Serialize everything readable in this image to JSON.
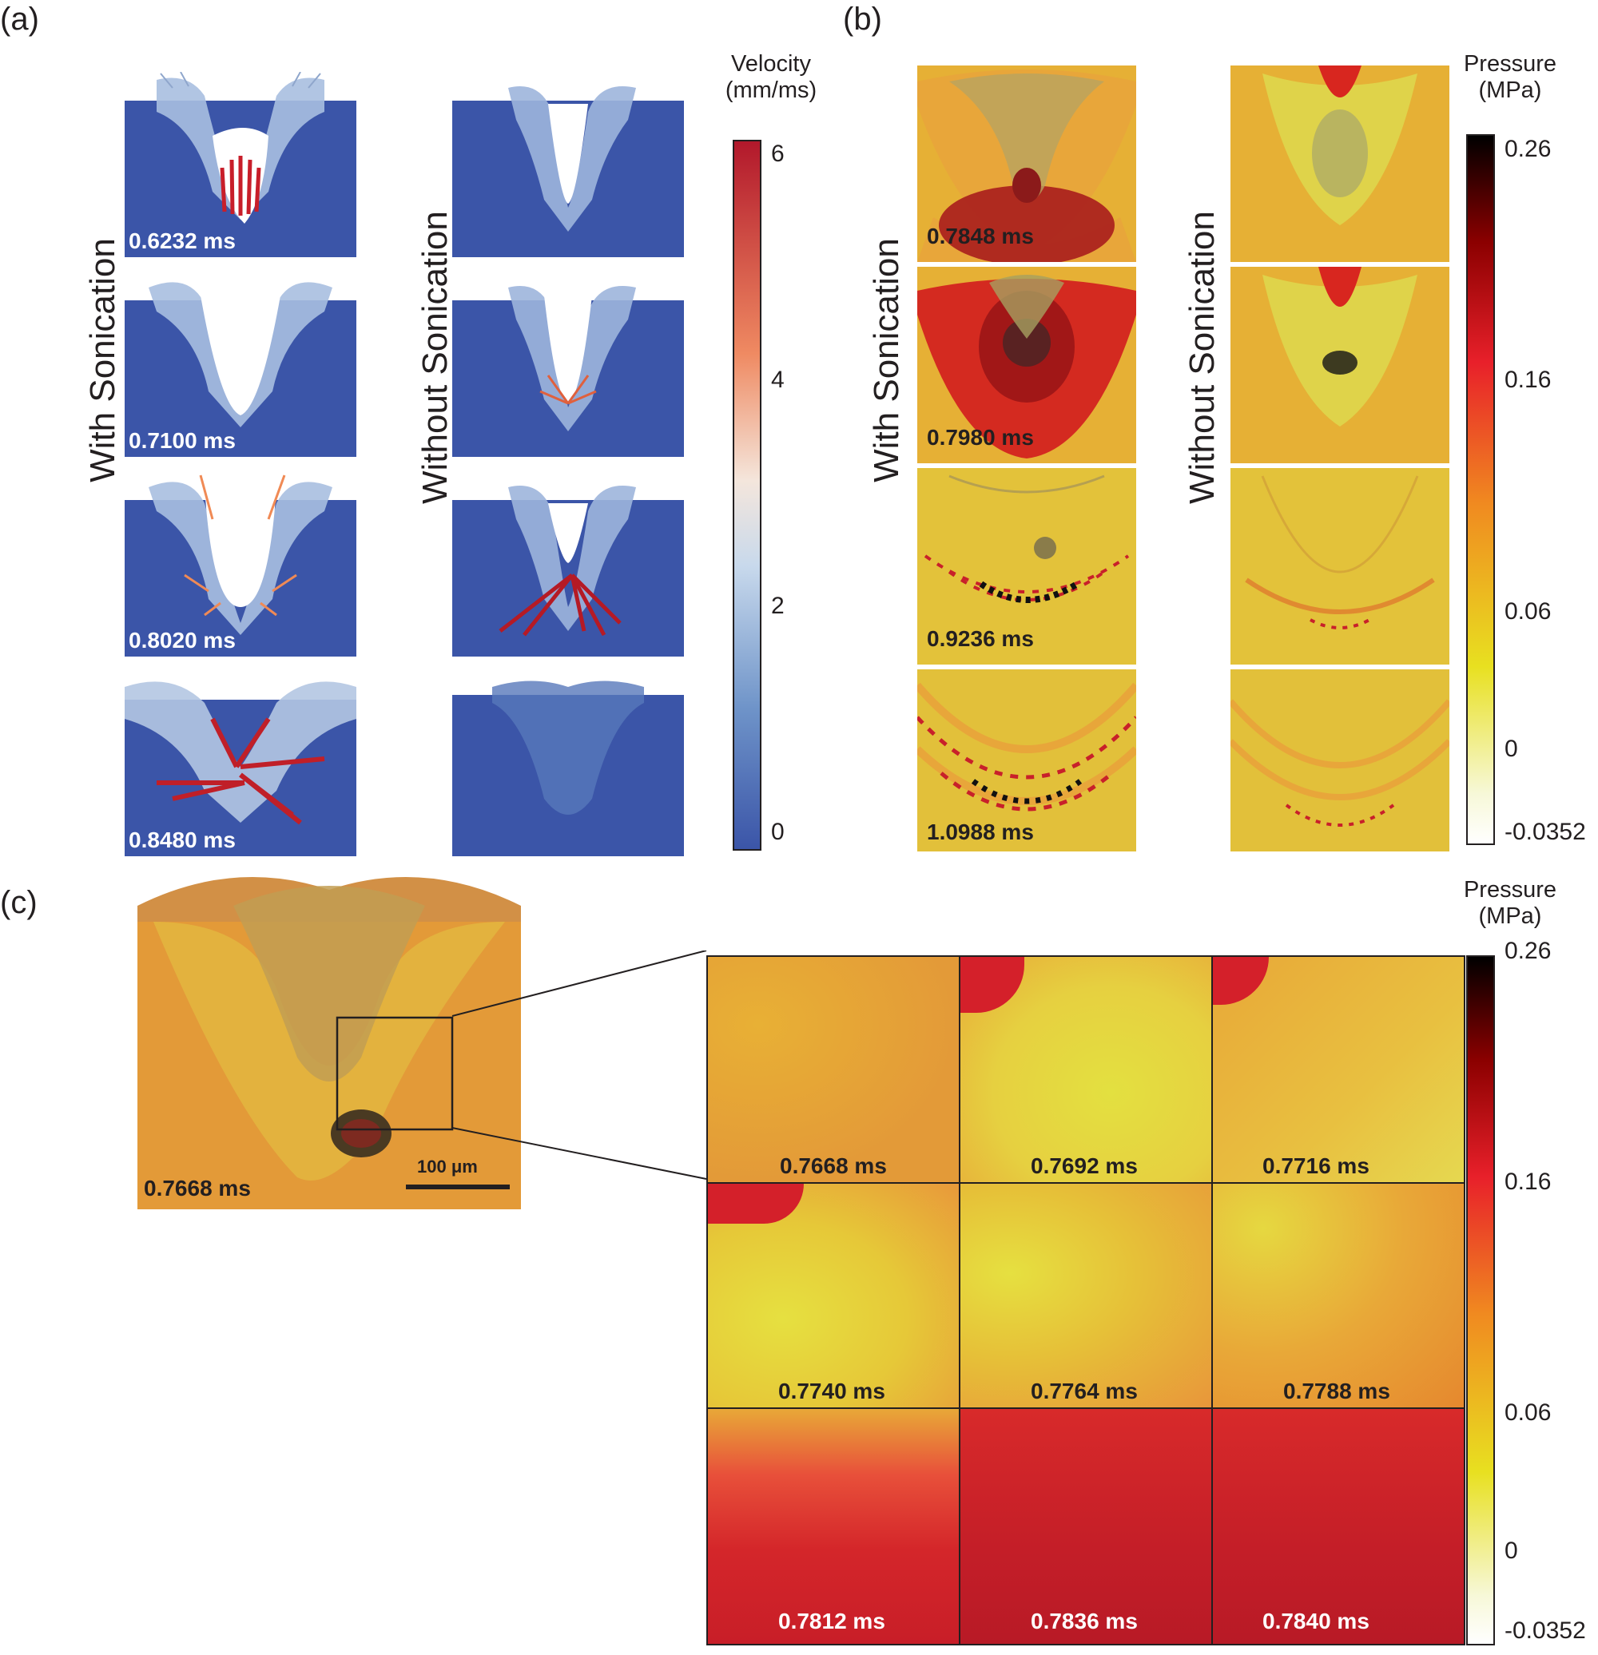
{
  "panels": {
    "a": {
      "letter": "(a)",
      "left_label": "With Sonication",
      "right_label": "Without Sonication",
      "with_times": [
        "0.6232 ms",
        "0.7100 ms",
        "0.8020 ms",
        "0.8480 ms"
      ],
      "colorbar": {
        "title_line1": "Velocity",
        "title_line2": "(mm/ms)",
        "ticks": [
          "6",
          "4",
          "2",
          "0"
        ],
        "colors": [
          "#b2182b",
          "#ef8a62",
          "#fddbc7",
          "#d1e5f0",
          "#67a9cf",
          "#3b5bab"
        ]
      }
    },
    "b": {
      "letter": "(b)",
      "left_label": "With Sonication",
      "right_label": "Without Sonication",
      "with_times": [
        "0.7848 ms",
        "0.7980 ms",
        "0.9236 ms",
        "1.0988 ms"
      ],
      "colorbar": {
        "title_line1": "Pressure",
        "title_line2": "(MPa)",
        "ticks": [
          "0.26",
          "0.16",
          "0.06",
          "0",
          "-0.0352"
        ],
        "colors": [
          "#000000",
          "#8b0000",
          "#e8202a",
          "#f4a020",
          "#e6e020",
          "#f4f7c0",
          "#ffffff"
        ]
      }
    },
    "c": {
      "letter": "(c)",
      "overview_time": "0.7668 ms",
      "scale_bar": "100 μm",
      "grid_times": [
        "0.7668 ms",
        "0.7692 ms",
        "0.7716 ms",
        "0.7740 ms",
        "0.7764 ms",
        "0.7788 ms",
        "0.7812 ms",
        "0.7836 ms",
        "0.7840 ms"
      ],
      "colorbar": {
        "title_line1": "Pressure",
        "title_line2": "(MPa)",
        "ticks": [
          "0.26",
          "0.16",
          "0.06",
          "0",
          "-0.0352"
        ]
      }
    }
  }
}
